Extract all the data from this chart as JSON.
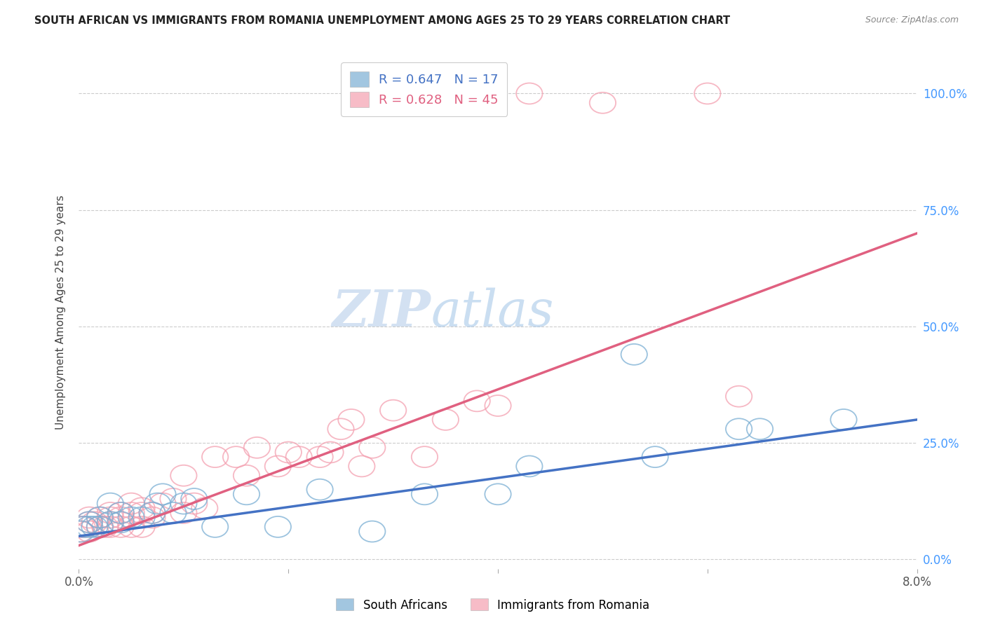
{
  "title": "SOUTH AFRICAN VS IMMIGRANTS FROM ROMANIA UNEMPLOYMENT AMONG AGES 25 TO 29 YEARS CORRELATION CHART",
  "source": "Source: ZipAtlas.com",
  "ylabel": "Unemployment Among Ages 25 to 29 years",
  "ytick_labels": [
    "0.0%",
    "25.0%",
    "50.0%",
    "75.0%",
    "100.0%"
  ],
  "ytick_values": [
    0.0,
    0.25,
    0.5,
    0.75,
    1.0
  ],
  "sa_color": "#7BAFD4",
  "ro_color": "#F4A0B0",
  "sa_line_color": "#4472C4",
  "ro_line_color": "#E06080",
  "watermark_zip": "ZIP",
  "watermark_atlas": "atlas",
  "xlim": [
    0.0,
    0.08
  ],
  "ylim": [
    -0.02,
    1.08
  ],
  "sa_points_x": [
    0.0002,
    0.0005,
    0.001,
    0.001,
    0.0015,
    0.002,
    0.002,
    0.003,
    0.003,
    0.004,
    0.004,
    0.005,
    0.006,
    0.007,
    0.0075,
    0.008,
    0.009,
    0.01,
    0.011,
    0.013,
    0.016,
    0.019,
    0.023,
    0.028,
    0.033,
    0.04,
    0.043,
    0.053,
    0.055,
    0.063,
    0.065,
    0.073
  ],
  "sa_points_y": [
    0.06,
    0.07,
    0.07,
    0.08,
    0.07,
    0.07,
    0.09,
    0.08,
    0.12,
    0.1,
    0.08,
    0.09,
    0.09,
    0.1,
    0.12,
    0.14,
    0.1,
    0.12,
    0.13,
    0.07,
    0.14,
    0.07,
    0.15,
    0.06,
    0.14,
    0.14,
    0.2,
    0.44,
    0.22,
    0.28,
    0.28,
    0.3
  ],
  "ro_points_x": [
    0.0001,
    0.0003,
    0.0005,
    0.001,
    0.001,
    0.001,
    0.0015,
    0.002,
    0.002,
    0.0025,
    0.003,
    0.003,
    0.003,
    0.003,
    0.004,
    0.004,
    0.004,
    0.005,
    0.005,
    0.005,
    0.006,
    0.006,
    0.006,
    0.007,
    0.007,
    0.008,
    0.009,
    0.01,
    0.01,
    0.011,
    0.012,
    0.013,
    0.015,
    0.016,
    0.017,
    0.019,
    0.02,
    0.021,
    0.023,
    0.024,
    0.025,
    0.026,
    0.027,
    0.028,
    0.03,
    0.033,
    0.035,
    0.038,
    0.04,
    0.043,
    0.05,
    0.06,
    0.063
  ],
  "ro_points_y": [
    0.06,
    0.07,
    0.07,
    0.06,
    0.08,
    0.09,
    0.08,
    0.07,
    0.09,
    0.07,
    0.07,
    0.08,
    0.09,
    0.1,
    0.07,
    0.09,
    0.1,
    0.07,
    0.1,
    0.12,
    0.1,
    0.11,
    0.07,
    0.09,
    0.1,
    0.12,
    0.13,
    0.1,
    0.18,
    0.12,
    0.11,
    0.22,
    0.22,
    0.18,
    0.24,
    0.2,
    0.23,
    0.22,
    0.22,
    0.23,
    0.28,
    0.3,
    0.2,
    0.24,
    0.32,
    0.22,
    0.3,
    0.34,
    0.33,
    1.0,
    0.98,
    1.0,
    0.35
  ],
  "sa_line": {
    "x0": 0.0,
    "y0": 0.05,
    "x1": 0.08,
    "y1": 0.3
  },
  "ro_line": {
    "x0": 0.0,
    "y0": 0.03,
    "x1": 0.08,
    "y1": 0.7
  }
}
